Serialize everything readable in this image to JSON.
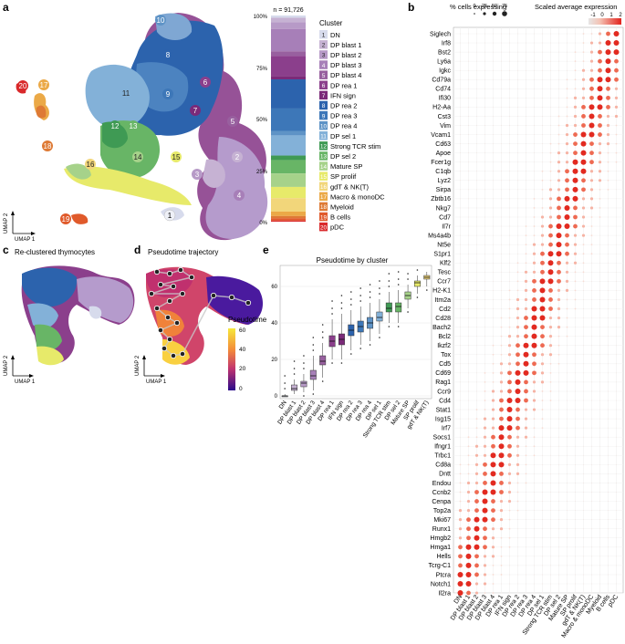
{
  "panel_labels": {
    "a": "a",
    "b": "b",
    "c": "c",
    "d": "d",
    "e": "e"
  },
  "umap": {
    "axis1": "UMAP 1",
    "axis2": "UMAP 2"
  },
  "panel_c_title": "Re-clustered thymocytes",
  "panel_d_title": "Pseudotime trajectory",
  "pseudotime_legend": {
    "title": "Pseudotime",
    "ticks": [
      "60",
      "40",
      "20",
      "0"
    ]
  },
  "cluster_labels_on_umap": [
    "1",
    "2",
    "3",
    "4",
    "5",
    "6",
    "7",
    "8",
    "9",
    "10",
    "11",
    "12",
    "13",
    "14",
    "15",
    "16",
    "17",
    "18",
    "19",
    "20"
  ],
  "stack_bar": {
    "n_label": "n = 91,726",
    "ticks": [
      "100%",
      "75%",
      "50%",
      "25%",
      "0%"
    ]
  },
  "cluster_legend": {
    "title": "Cluster",
    "items": [
      {
        "num": "1",
        "name": "DN",
        "color": "#d7dbec"
      },
      {
        "num": "2",
        "name": "DP blast 1",
        "color": "#c6b2d3"
      },
      {
        "num": "3",
        "name": "DP blast 2",
        "color": "#b79ac7"
      },
      {
        "num": "4",
        "name": "DP blast 3",
        "color": "#a77fb8"
      },
      {
        "num": "5",
        "name": "DP blast 4",
        "color": "#98609f"
      },
      {
        "num": "6",
        "name": "DP rea 1",
        "color": "#8b3f8c"
      },
      {
        "num": "7",
        "name": "IFN sign",
        "color": "#7b2a79"
      },
      {
        "num": "8",
        "name": "DP rea 2",
        "color": "#2c63ad"
      },
      {
        "num": "9",
        "name": "DP rea 3",
        "color": "#3d77b8"
      },
      {
        "num": "10",
        "name": "DP rea 4",
        "color": "#5e93c6"
      },
      {
        "num": "11",
        "name": "DP sel 1",
        "color": "#83b1d8"
      },
      {
        "num": "12",
        "name": "Strong TCR stim",
        "color": "#3f9a54"
      },
      {
        "num": "13",
        "name": "DP sel 2",
        "color": "#68b566"
      },
      {
        "num": "14",
        "name": "Mature SP",
        "color": "#a6d28a"
      },
      {
        "num": "15",
        "name": "SP prolif",
        "color": "#e7ea6a"
      },
      {
        "num": "16",
        "name": "gdT & NK(T)",
        "color": "#f2d67a"
      },
      {
        "num": "17",
        "name": "Macro & monoDC",
        "color": "#eba947"
      },
      {
        "num": "18",
        "name": "Myeloid",
        "color": "#de7a35"
      },
      {
        "num": "19",
        "name": "B cells",
        "color": "#e05a2b"
      },
      {
        "num": "20",
        "name": "pDC",
        "color": "#d9292b"
      }
    ]
  },
  "panel_b": {
    "size_legend": {
      "title": "% cells expressing",
      "ticks": [
        "0",
        "25",
        "50",
        "75"
      ]
    },
    "color_legend": {
      "title": "Scaled average expression",
      "ticks": [
        "-1",
        "0",
        "1",
        "2"
      ]
    },
    "genes": [
      "Siglech",
      "Irf8",
      "Bst2",
      "Ly6a",
      "Igkc",
      "Cd79a",
      "Cd74",
      "Ifi30",
      "H2-Aa",
      "Cst3",
      "Vim",
      "Vcam1",
      "Cd63",
      "Apoe",
      "Fcer1g",
      "C1qb",
      "Lyz2",
      "Sirpa",
      "Zbtb16",
      "Nkg7",
      "Cd7",
      "Il7r",
      "Ms4a4b",
      "Nt5e",
      "S1pr1",
      "Klf2",
      "Tesc",
      "Ccr7",
      "H2-K1",
      "Itm2a",
      "Cd2",
      "Cd28",
      "Bach2",
      "Bcl2",
      "Ikzf2",
      "Tox",
      "Cd5",
      "Cd69",
      "Rag1",
      "Ccr9",
      "Cd4",
      "Stat1",
      "Isg15",
      "Irf7",
      "Socs1",
      "Ifngr1",
      "Trbc1",
      "Cd8a",
      "Dntt",
      "Endou",
      "Ccnb2",
      "Cenpa",
      "Top2a",
      "Mki67",
      "Runx1",
      "Hmgb2",
      "Hmga1",
      "Hells",
      "Tcrg-C1",
      "Ptcra",
      "Notch1",
      "Il2ra"
    ]
  },
  "chart_data": {
    "type": "box",
    "title": "Pseudotime by cluster",
    "xlabel": "",
    "ylabel": "",
    "ylim": [
      0,
      70
    ],
    "yticks": [
      "0",
      "20",
      "40",
      "60"
    ],
    "categories": [
      "DN",
      "DP blast 1",
      "DP blast 2",
      "DP blast 3",
      "DP blast 4",
      "DP rea 1",
      "IFN sign",
      "DP rea 2",
      "DP rea 3",
      "DP rea 4",
      "DP sel 1",
      "Strong TCR stim",
      "DP sel 2",
      "Mature SP",
      "SP prolif",
      "gdT & NK(T)"
    ],
    "series": [
      {
        "name": "DN",
        "q1": 0,
        "median": 0,
        "q3": 0,
        "low": 0,
        "high": 1
      },
      {
        "name": "DP blast 1",
        "q1": 3,
        "median": 4,
        "q3": 6,
        "low": 1,
        "high": 9
      },
      {
        "name": "DP blast 2",
        "q1": 5,
        "median": 7,
        "q3": 8,
        "low": 2,
        "high": 12
      },
      {
        "name": "DP blast 3",
        "q1": 9,
        "median": 11,
        "q3": 14,
        "low": 3,
        "high": 22
      },
      {
        "name": "DP blast 4",
        "q1": 17,
        "median": 19,
        "q3": 22,
        "low": 10,
        "high": 29
      },
      {
        "name": "DP rea 1",
        "q1": 27,
        "median": 30,
        "q3": 33,
        "low": 20,
        "high": 42
      },
      {
        "name": "IFN sign",
        "q1": 28,
        "median": 31,
        "q3": 34,
        "low": 20,
        "high": 45
      },
      {
        "name": "DP rea 2",
        "q1": 33,
        "median": 36,
        "q3": 39,
        "low": 25,
        "high": 47
      },
      {
        "name": "DP rea 3",
        "q1": 35,
        "median": 38,
        "q3": 41,
        "low": 28,
        "high": 49
      },
      {
        "name": "DP rea 4",
        "q1": 37,
        "median": 40,
        "q3": 43,
        "low": 30,
        "high": 51
      },
      {
        "name": "DP sel 1",
        "q1": 41,
        "median": 43,
        "q3": 46,
        "low": 34,
        "high": 53
      },
      {
        "name": "Strong TCR stim",
        "q1": 46,
        "median": 48,
        "q3": 51,
        "low": 40,
        "high": 57
      },
      {
        "name": "DP sel 2",
        "q1": 46,
        "median": 49,
        "q3": 51,
        "low": 40,
        "high": 58
      },
      {
        "name": "Mature SP",
        "q1": 53,
        "median": 55,
        "q3": 57,
        "low": 48,
        "high": 61
      },
      {
        "name": "SP prolif",
        "q1": 60,
        "median": 62,
        "q3": 63,
        "low": 56,
        "high": 66
      },
      {
        "name": "gdT & NK(T)",
        "q1": 64,
        "median": 65,
        "q3": 66,
        "low": 60,
        "high": 68
      }
    ],
    "colors": [
      "#d7dbec",
      "#c6b2d3",
      "#b79ac7",
      "#a77fb8",
      "#98609f",
      "#8b3f8c",
      "#7b2a79",
      "#2c63ad",
      "#3d77b8",
      "#5e93c6",
      "#83b1d8",
      "#3f9a54",
      "#68b566",
      "#a6d28a",
      "#e7ea6a",
      "#f2d67a"
    ],
    "stack_fractions": [
      0.01,
      0.02,
      0.03,
      0.1,
      0.02,
      0.09,
      0.015,
      0.13,
      0.1,
      0.02,
      0.09,
      0.02,
      0.06,
      0.06,
      0.05,
      0.06,
      0.02,
      0.01,
      0.01,
      0.005
    ]
  }
}
